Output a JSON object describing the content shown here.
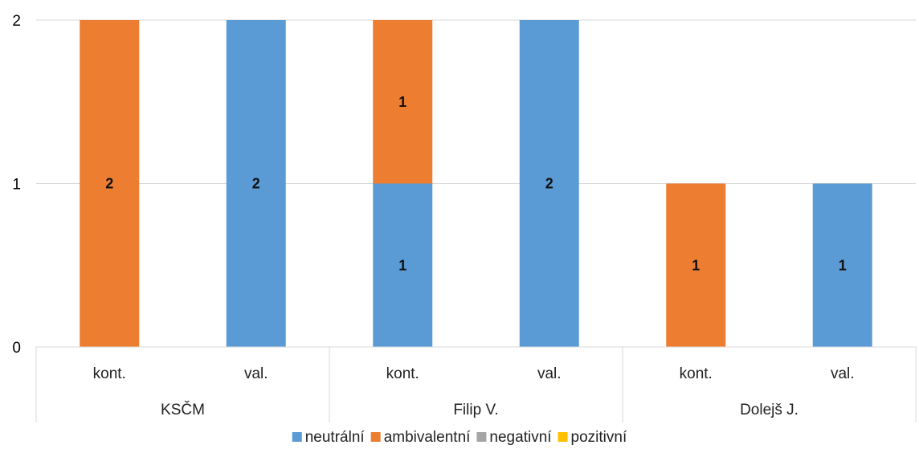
{
  "chart_data": {
    "type": "bar",
    "stacked": true,
    "groups": [
      "KSČM",
      "Filip V.",
      "Dolejš J."
    ],
    "categories": [
      "kont.",
      "val.",
      "kont.",
      "val.",
      "kont.",
      "val."
    ],
    "series": [
      {
        "name": "neutrální",
        "color": "#5B9BD5",
        "values": [
          0,
          2,
          1,
          2,
          0,
          1
        ]
      },
      {
        "name": "ambivalentní",
        "color": "#ED7D31",
        "values": [
          2,
          0,
          1,
          0,
          1,
          0
        ]
      },
      {
        "name": "negativní",
        "color": "#A5A5A5",
        "values": [
          0,
          0,
          0,
          0,
          0,
          0
        ]
      },
      {
        "name": "pozitivní",
        "color": "#FFC000",
        "values": [
          0,
          0,
          0,
          0,
          0,
          0
        ]
      }
    ],
    "data_labels": [
      {
        "category_index": 0,
        "series": "ambivalentní",
        "text": "2"
      },
      {
        "category_index": 1,
        "series": "neutrální",
        "text": "2"
      },
      {
        "category_index": 2,
        "series": "neutrální",
        "text": "1"
      },
      {
        "category_index": 2,
        "series": "ambivalentní",
        "text": "1"
      },
      {
        "category_index": 3,
        "series": "neutrální",
        "text": "2"
      },
      {
        "category_index": 4,
        "series": "ambivalentní",
        "text": "1"
      },
      {
        "category_index": 5,
        "series": "neutrální",
        "text": "1"
      }
    ],
    "yticks": [
      "0",
      "1",
      "2"
    ],
    "ylim": [
      0,
      2
    ],
    "grid": true,
    "legend_position": "bottom"
  }
}
